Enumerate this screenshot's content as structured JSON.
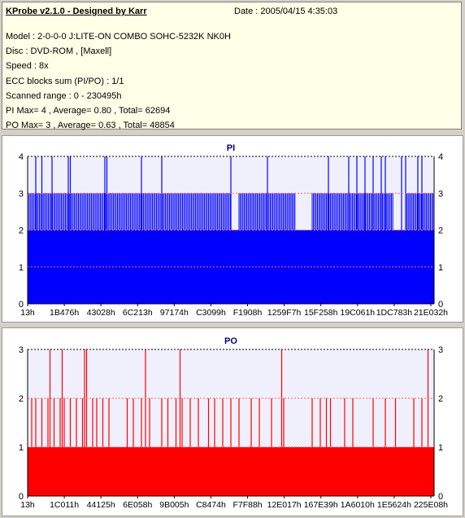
{
  "info": {
    "title": "KProbe v2.1.0 - Designed by Karr",
    "date": "Date : 2005/04/15 4:35:03",
    "lines": [
      "Model : 2-0-0-0 J:LITE-ON COMBO SOHC-5232K NK0H",
      "Disc : DVD-ROM ,  [Maxell]",
      "Speed : 8x",
      "ECC blocks sum (PI/PO) : 1/1",
      "Scanned range : 0 - 230495h",
      "PI Max= 4 , Average= 0.80 , Total= 62694",
      "PO Max= 3 , Average= 0.63 , Total= 48854"
    ]
  },
  "chart_data": [
    {
      "type": "bar",
      "title": "PI",
      "color": "#0000ff",
      "ylim": [
        0,
        4
      ],
      "y_ticks": [
        0,
        1,
        2,
        3,
        4
      ],
      "grid_values": [
        1,
        2,
        3,
        4
      ],
      "x_tick_labels": [
        "13h",
        "1B476h",
        "43028h",
        "6C213h",
        "97174h",
        "C3099h",
        "F1908h",
        "1259F7h",
        "15F258h",
        "19C061h",
        "1DC783h",
        "21E032h"
      ],
      "baseline_value": 2,
      "dense_spans_value_3": [
        [
          0.0,
          0.5
        ],
        [
          0.52,
          0.66
        ],
        [
          0.7,
          0.9
        ],
        [
          0.93,
          1.0
        ]
      ],
      "spikes_value_4": [
        0.02,
        0.035,
        0.06,
        0.1,
        0.105,
        0.19,
        0.195,
        0.28,
        0.33,
        0.5,
        0.59,
        0.74,
        0.79,
        0.81,
        0.83,
        0.85,
        0.87,
        0.88,
        0.92,
        0.93,
        0.96,
        0.97
      ]
    },
    {
      "type": "bar",
      "title": "PO",
      "color": "#ff0000",
      "ylim": [
        0,
        3
      ],
      "y_ticks": [
        0,
        1,
        2,
        3
      ],
      "grid_values": [
        1,
        2,
        3
      ],
      "x_tick_labels": [
        "13h",
        "1C011h",
        "44125h",
        "6E058h",
        "9B005h",
        "C8474h",
        "F7F88h",
        "12E017h",
        "167E39h",
        "1A6010h",
        "1E5624h",
        "225E08h"
      ],
      "baseline_value": 1,
      "spikes_value_2": [
        0.01,
        0.02,
        0.035,
        0.05,
        0.065,
        0.08,
        0.09,
        0.105,
        0.12,
        0.135,
        0.16,
        0.17,
        0.185,
        0.2,
        0.245,
        0.26,
        0.28,
        0.3,
        0.33,
        0.345,
        0.365,
        0.38,
        0.4,
        0.42,
        0.445,
        0.46,
        0.48,
        0.5,
        0.52,
        0.55,
        0.57,
        0.6,
        0.63,
        0.7,
        0.72,
        0.735,
        0.745,
        0.78,
        0.8,
        0.85,
        0.88,
        0.905,
        0.95,
        0.97
      ],
      "spikes_value_3": [
        0.055,
        0.085,
        0.14,
        0.145,
        0.29,
        0.375,
        0.625,
        0.985
      ]
    }
  ]
}
